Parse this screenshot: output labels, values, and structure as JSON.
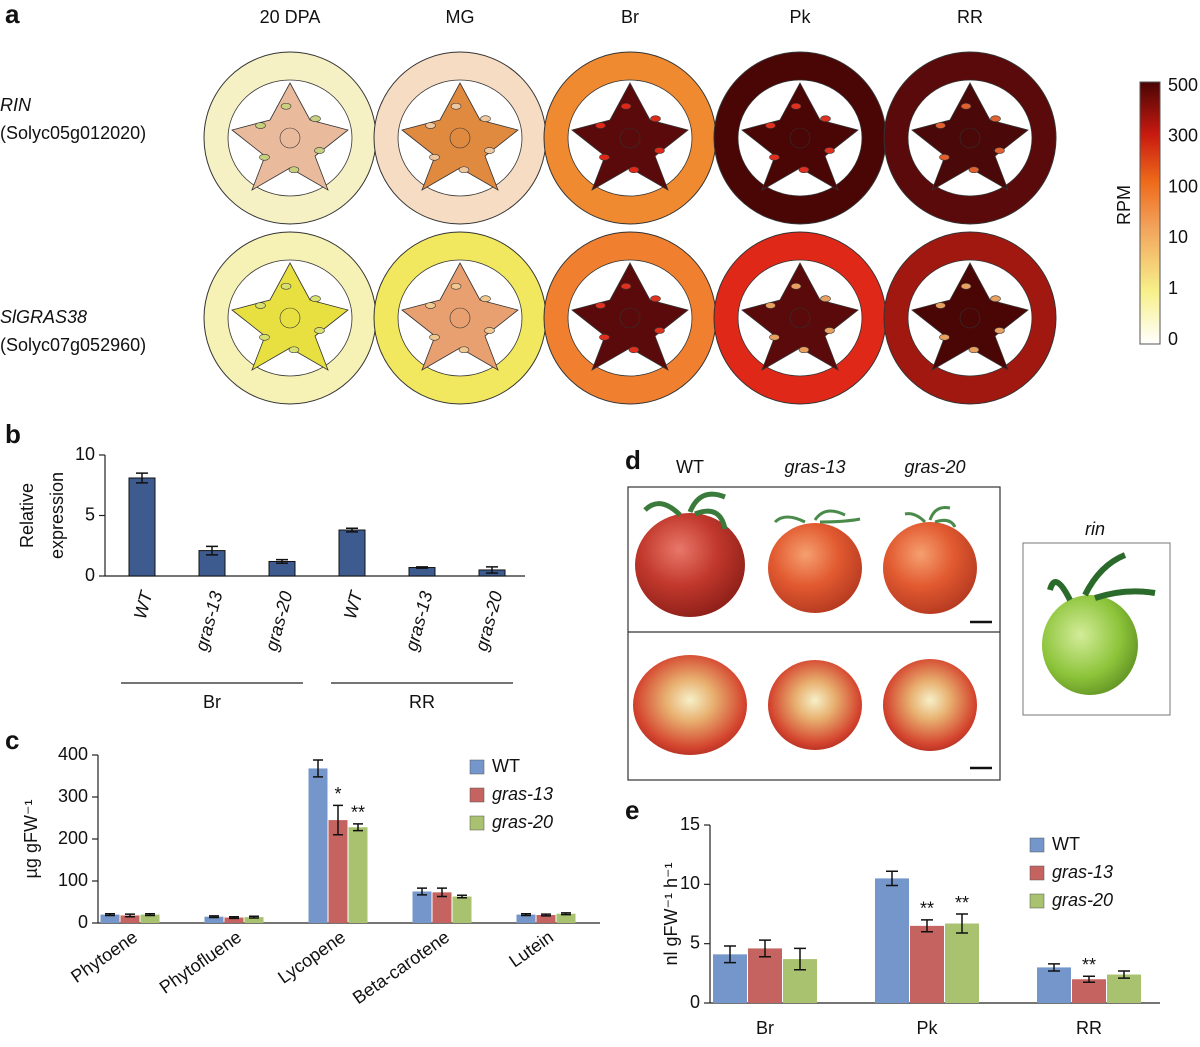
{
  "panel_labels": [
    "a",
    "b",
    "c",
    "d",
    "e"
  ],
  "panel_a": {
    "columns": [
      "20 DPA",
      "MG",
      "Br",
      "Pk",
      "RR"
    ],
    "rows": [
      {
        "gene": "RIN",
        "id": "(Solyc05g012020)"
      },
      {
        "gene": "SlGRAS38",
        "id": "(Solyc07g052960)"
      }
    ],
    "colorbar": {
      "label": "RPM",
      "ticks": [
        500,
        300,
        100,
        10,
        1,
        0
      ]
    }
  },
  "panel_d": {
    "labels": [
      "WT",
      "gras-13",
      "gras-20",
      "rin"
    ]
  },
  "chart_data": [
    {
      "type": "bar",
      "ylabel": [
        "Relative",
        "expression"
      ],
      "categories": [
        "WT",
        "gras-13",
        "gras-20",
        "WT",
        "gras-13",
        "gras-20"
      ],
      "group_labels": [
        "Br",
        "RR"
      ],
      "values": [
        8.1,
        2.1,
        1.2,
        3.8,
        0.7,
        0.5
      ],
      "errors": [
        0.4,
        0.35,
        0.15,
        0.15,
        0.05,
        0.25
      ],
      "color": "#3d5b8f",
      "ylim": [
        0,
        10
      ],
      "yticks": [
        0,
        5,
        10
      ]
    },
    {
      "type": "bar",
      "ylabel": "µg gFW⁻¹",
      "categories": [
        "Phytoene",
        "Phytofluene",
        "Lycopene",
        "Beta-carotene",
        "Lutein"
      ],
      "series": [
        {
          "name": "WT",
          "color": "#7496cb",
          "values": [
            20,
            15,
            368,
            75,
            20
          ],
          "errors": [
            2,
            2,
            20,
            8,
            2
          ],
          "significance": [
            null,
            null,
            null,
            null,
            null
          ]
        },
        {
          "name": "gras-13",
          "color": "#c46360",
          "values": [
            18,
            13,
            245,
            73,
            19
          ],
          "errors": [
            3,
            2,
            35,
            10,
            2
          ],
          "significance": [
            null,
            null,
            "*",
            null,
            null
          ]
        },
        {
          "name": "gras-20",
          "color": "#a8c26f",
          "values": [
            20,
            14,
            228,
            63,
            22
          ],
          "errors": [
            2,
            2,
            8,
            3,
            2
          ],
          "significance": [
            null,
            null,
            "**",
            null,
            null
          ]
        }
      ],
      "ylim": [
        0,
        400
      ],
      "yticks": [
        0,
        100,
        200,
        300,
        400
      ]
    },
    {
      "type": "bar",
      "ylabel": "nl gFW⁻¹ h⁻¹",
      "categories": [
        "Br",
        "Pk",
        "RR"
      ],
      "series": [
        {
          "name": "WT",
          "color": "#7496cb",
          "values": [
            4.1,
            10.5,
            3.0
          ],
          "errors": [
            0.7,
            0.6,
            0.3
          ],
          "significance": [
            null,
            null,
            null
          ]
        },
        {
          "name": "gras-13",
          "color": "#c46360",
          "values": [
            4.6,
            6.5,
            2.0
          ],
          "errors": [
            0.7,
            0.5,
            0.25
          ],
          "significance": [
            null,
            "**",
            "**"
          ]
        },
        {
          "name": "gras-20",
          "color": "#a8c26f",
          "values": [
            3.7,
            6.7,
            2.4
          ],
          "errors": [
            0.9,
            0.8,
            0.3
          ],
          "significance": [
            null,
            "**",
            null
          ]
        }
      ],
      "ylim": [
        0,
        15
      ],
      "yticks": [
        0,
        5,
        10,
        15
      ]
    }
  ]
}
